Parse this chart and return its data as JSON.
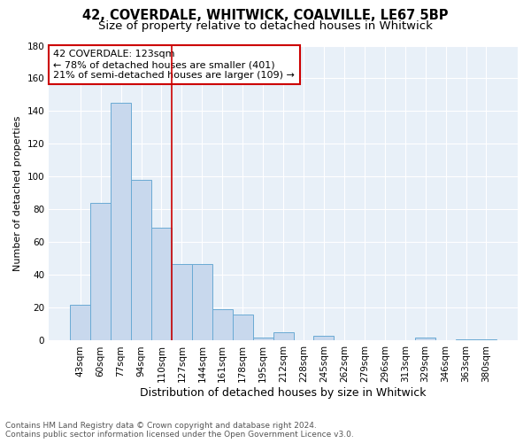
{
  "title1": "42, COVERDALE, WHITWICK, COALVILLE, LE67 5BP",
  "title2": "Size of property relative to detached houses in Whitwick",
  "xlabel": "Distribution of detached houses by size in Whitwick",
  "ylabel": "Number of detached properties",
  "bar_color": "#c8d8ed",
  "bar_edge_color": "#6aaad4",
  "categories": [
    "43sqm",
    "60sqm",
    "77sqm",
    "94sqm",
    "110sqm",
    "127sqm",
    "144sqm",
    "161sqm",
    "178sqm",
    "195sqm",
    "212sqm",
    "228sqm",
    "245sqm",
    "262sqm",
    "279sqm",
    "296sqm",
    "313sqm",
    "329sqm",
    "346sqm",
    "363sqm",
    "380sqm"
  ],
  "values": [
    22,
    84,
    145,
    98,
    69,
    47,
    47,
    19,
    16,
    2,
    5,
    0,
    3,
    0,
    0,
    0,
    0,
    2,
    0,
    1,
    1
  ],
  "vline_x": 4.5,
  "vline_color": "#cc0000",
  "annotation_text1": "42 COVERDALE: 123sqm",
  "annotation_text2": "← 78% of detached houses are smaller (401)",
  "annotation_text3": "21% of semi-detached houses are larger (109) →",
  "box_facecolor": "#ffffff",
  "box_edgecolor": "#cc0000",
  "fig_facecolor": "#ffffff",
  "ax_facecolor": "#e8f0f8",
  "ylim": [
    0,
    180
  ],
  "yticks": [
    0,
    20,
    40,
    60,
    80,
    100,
    120,
    140,
    160,
    180
  ],
  "footnote": "Contains HM Land Registry data © Crown copyright and database right 2024.\nContains public sector information licensed under the Open Government Licence v3.0.",
  "title1_fontsize": 10.5,
  "title2_fontsize": 9.5,
  "xlabel_fontsize": 9,
  "ylabel_fontsize": 8,
  "tick_fontsize": 7.5,
  "footnote_fontsize": 6.5
}
